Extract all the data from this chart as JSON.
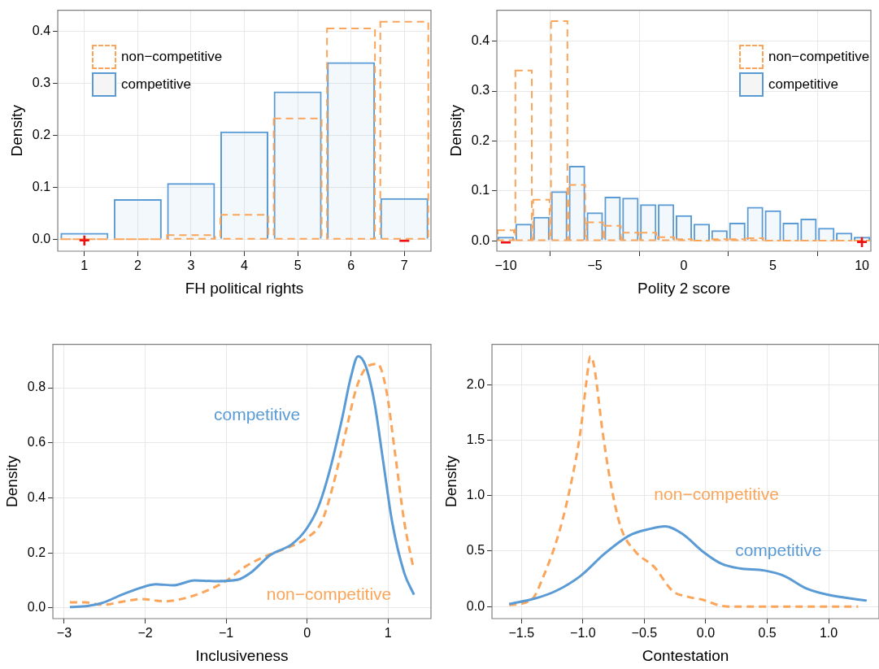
{
  "chart_data": [
    {
      "type": "bar",
      "xlabel": "FH political rights",
      "ylabel": "Density",
      "categories": [
        "1",
        "2",
        "3",
        "4",
        "5",
        "6",
        "7"
      ],
      "series": [
        {
          "name": "non−competitive",
          "color": "#faa559",
          "line_style": "dashed",
          "values": [
            0,
            0,
            0.008,
            0.047,
            0.232,
            0.405,
            0.418
          ]
        },
        {
          "name": "competitive",
          "color": "#5a9bd5",
          "line_style": "solid",
          "values": [
            0.012,
            0.077,
            0.108,
            0.207,
            0.284,
            0.34,
            0.079
          ]
        }
      ],
      "ylim": [
        -0.023,
        0.44
      ],
      "yticks": [
        {
          "value": 0,
          "label": "0.0"
        },
        0.1,
        0.2,
        0.3,
        0.4
      ],
      "grid": true,
      "legend": "top left",
      "annotations": [
        {
          "text": "+",
          "x": "1",
          "y": 0
        },
        {
          "text": "−",
          "x": "7",
          "y": 0
        }
      ]
    },
    {
      "type": "bar",
      "xlabel": "Polity 2 score",
      "ylabel": "Density",
      "x": [
        -10,
        -9,
        -8,
        -7,
        -6,
        -5,
        -4,
        -3,
        -2,
        -1,
        0,
        1,
        2,
        3,
        4,
        5,
        6,
        7,
        8,
        9,
        10
      ],
      "series": [
        {
          "name": "non−competitive",
          "color": "#faa559",
          "line_style": "dashed",
          "values": [
            0.021,
            0.341,
            0.082,
            0.44,
            0.112,
            0.037,
            0.03,
            0.016,
            0.016,
            0.007,
            0.003,
            0,
            0.003,
            0.003,
            0.005,
            0,
            0,
            0,
            0,
            0,
            0
          ]
        },
        {
          "name": "competitive",
          "color": "#5a9bd5",
          "line_style": "solid",
          "values": [
            0.008,
            0.034,
            0.048,
            0.099,
            0.15,
            0.057,
            0.088,
            0.086,
            0.073,
            0.073,
            0.051,
            0.034,
            0.021,
            0.036,
            0.068,
            0.061,
            0.036,
            0.044,
            0.026,
            0.016,
            0.008
          ]
        }
      ],
      "xlim": [
        -10.5,
        10.5
      ],
      "xticks": [
        {
          "value": -10,
          "label": "−10"
        },
        {
          "value": -5,
          "label": "−5"
        },
        0,
        5,
        10
      ],
      "ylim": [
        -0.021,
        0.462
      ],
      "yticks": [
        {
          "value": 0,
          "label": "0.0"
        },
        0.1,
        0.2,
        0.3,
        0.4
      ],
      "grid": true,
      "legend": "top right",
      "annotations": [
        {
          "text": "−",
          "x": -10,
          "y": 0
        },
        {
          "text": "+",
          "x": 10,
          "y": 0
        }
      ]
    },
    {
      "type": "line",
      "xlabel": "Inclusiveness",
      "ylabel": "Density",
      "series": [
        {
          "name": "competitive",
          "color": "#5a9bd5",
          "line_style": "solid",
          "x": [
            -2.93,
            -2.71,
            -2.53,
            -2.27,
            -1.98,
            -1.87,
            -1.65,
            -1.39,
            -1.14,
            -0.85,
            -0.7,
            -0.45,
            -0.19,
            -0.01,
            0.14,
            0.28,
            0.43,
            0.54,
            0.63,
            0.72,
            0.83,
            0.94,
            1.05,
            1.2,
            1.32
          ],
          "values": [
            0.003,
            0.007,
            0.018,
            0.05,
            0.08,
            0.086,
            0.082,
            0.1,
            0.097,
            0.103,
            0.127,
            0.193,
            0.231,
            0.286,
            0.368,
            0.5,
            0.685,
            0.838,
            0.915,
            0.882,
            0.75,
            0.532,
            0.313,
            0.127,
            0.048
          ]
        },
        {
          "name": "non−competitive",
          "color": "#faa559",
          "line_style": "dashed",
          "x": [
            -2.93,
            -2.74,
            -2.53,
            -2.27,
            -2.05,
            -1.76,
            -1.54,
            -1.25,
            -0.99,
            -0.77,
            -0.52,
            -0.23,
            -0.01,
            0.18,
            0.32,
            0.47,
            0.61,
            0.72,
            0.87,
            0.98,
            1.09,
            1.2,
            1.31
          ],
          "values": [
            0.02,
            0.02,
            0.011,
            0.023,
            0.032,
            0.024,
            0.033,
            0.061,
            0.1,
            0.149,
            0.187,
            0.22,
            0.253,
            0.313,
            0.444,
            0.63,
            0.8,
            0.87,
            0.887,
            0.789,
            0.554,
            0.313,
            0.149
          ]
        }
      ],
      "xlim": [
        -3.14,
        1.53
      ],
      "xticks": [
        {
          "value": -3,
          "label": "−3"
        },
        {
          "value": -2,
          "label": "−2"
        },
        {
          "value": -1,
          "label": "−1"
        },
        0,
        1
      ],
      "ylim": [
        -0.039,
        0.958
      ],
      "yticks": [
        {
          "value": 0,
          "label": "0.0"
        },
        0.2,
        0.4,
        0.6,
        0.8
      ],
      "grid": true
    },
    {
      "type": "line",
      "xlabel": "Contestation",
      "ylabel": "Density",
      "series": [
        {
          "name": "competitive",
          "color": "#5a9bd5",
          "line_style": "solid",
          "x": [
            -1.6,
            -1.39,
            -1.22,
            -1.02,
            -0.82,
            -0.62,
            -0.47,
            -0.33,
            -0.19,
            -0.02,
            0.13,
            0.28,
            0.48,
            0.64,
            0.81,
            0.99,
            1.31
          ],
          "values": [
            0.024,
            0.073,
            0.141,
            0.276,
            0.48,
            0.642,
            0.696,
            0.724,
            0.656,
            0.493,
            0.385,
            0.344,
            0.325,
            0.276,
            0.168,
            0.108,
            0.054
          ]
        },
        {
          "name": "non−competitive",
          "color": "#faa559",
          "line_style": "dashed",
          "x": [
            -1.6,
            -1.42,
            -1.32,
            -1.19,
            -1.09,
            -1.02,
            -0.97,
            -0.94,
            -0.91,
            -0.84,
            -0.77,
            -0.69,
            -0.57,
            -0.42,
            -0.27,
            -0.14,
            -0.02,
            0.11,
            0.23,
            1.24
          ],
          "values": [
            0.014,
            0.06,
            0.276,
            0.683,
            1.144,
            1.577,
            2.038,
            2.255,
            2.173,
            1.577,
            1.089,
            0.71,
            0.493,
            0.358,
            0.141,
            0.087,
            0.06,
            0.011,
            0,
            0
          ]
        }
      ],
      "xlim": [
        -1.74,
        1.41
      ],
      "xticks": [
        {
          "value": -1.5,
          "label": "−1.5"
        },
        {
          "value": -1,
          "label": "−1.0"
        },
        {
          "value": -0.5,
          "label": "−0.5"
        },
        {
          "value": 0,
          "label": "0.0"
        },
        0.5,
        {
          "value": 1,
          "label": "1.0"
        }
      ],
      "ylim": [
        -0.108,
        2.363
      ],
      "yticks": [
        {
          "value": 0,
          "label": "0.0"
        },
        0.5,
        {
          "value": 1,
          "label": "1.0"
        },
        1.5,
        {
          "value": 2,
          "label": "2.0"
        }
      ],
      "grid": true
    }
  ]
}
